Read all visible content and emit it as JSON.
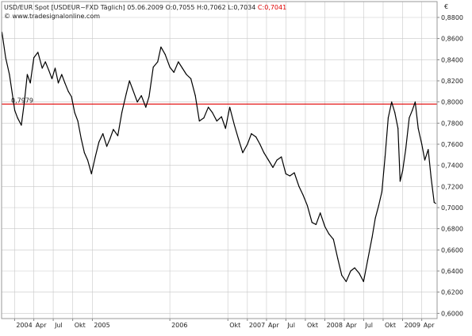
{
  "header": {
    "title": "USD/EUR Spot [USDEUR~FXD Täglich]",
    "date": "05.06.2009",
    "ohl": "O:0,7055 H:0,7062 L:0,7034",
    "close": "C:0,7041",
    "source": "© www.tradesignalonline.com",
    "currency": "€"
  },
  "colors": {
    "series": "#000000",
    "refline": "#e00000",
    "close": "#e00000",
    "grid": "#c8c8c8",
    "frame": "#9a9a9a"
  },
  "chart_data": {
    "type": "line",
    "title": "USD/EUR Spot [USDEUR~FXD Täglich]",
    "xlabel": "",
    "ylabel": "€",
    "ylim": [
      0.595,
      0.895
    ],
    "xlim": [
      "2003-11-01",
      "2009-06-12"
    ],
    "y_ticks": [
      "0,6000",
      "0,6200",
      "0,6400",
      "0,6600",
      "0,6800",
      "0,7000",
      "0,7200",
      "0,7400",
      "0,7600",
      "0,7800",
      "0,8000",
      "0,8200",
      "0,8400",
      "0,8600",
      "0,8800"
    ],
    "x_ticks": [
      {
        "date": "2004-01-01",
        "label": "2004"
      },
      {
        "date": "2004-04-01",
        "label": "Apr"
      },
      {
        "date": "2004-07-01",
        "label": "Jul"
      },
      {
        "date": "2004-10-01",
        "label": "Okt"
      },
      {
        "date": "2005-01-01",
        "label": "2005"
      },
      {
        "date": "2006-01-01",
        "label": "2006"
      },
      {
        "date": "2006-10-01",
        "label": "Okt"
      },
      {
        "date": "2007-01-01",
        "label": "2007"
      },
      {
        "date": "2007-04-01",
        "label": "Apr"
      },
      {
        "date": "2007-07-01",
        "label": "Jul"
      },
      {
        "date": "2007-10-01",
        "label": "Okt"
      },
      {
        "date": "2008-01-01",
        "label": "2008"
      },
      {
        "date": "2008-04-01",
        "label": "Apr"
      },
      {
        "date": "2008-07-01",
        "label": "Jul"
      },
      {
        "date": "2008-10-01",
        "label": "Okt"
      },
      {
        "date": "2009-01-01",
        "label": "2009"
      },
      {
        "date": "2009-04-01",
        "label": "Apr"
      }
    ],
    "grid": true,
    "reference_line": {
      "value": 0.798,
      "label": "0,7979"
    },
    "series": [
      {
        "x": [
          "2003-11-03",
          "2003-11-20",
          "2003-12-08",
          "2004-01-02",
          "2004-01-15",
          "2004-02-02",
          "2004-02-16",
          "2004-03-01",
          "2004-03-15",
          "2004-04-01",
          "2004-04-20",
          "2004-05-10",
          "2004-05-25",
          "2004-06-10",
          "2004-06-25",
          "2004-07-10",
          "2004-07-25",
          "2004-08-10",
          "2004-08-25",
          "2004-09-10",
          "2004-09-25",
          "2004-10-10",
          "2004-10-25",
          "2004-11-10",
          "2004-11-25",
          "2004-12-10",
          "2004-12-28",
          "2005-01-15",
          "2005-02-01",
          "2005-02-20",
          "2005-03-10",
          "2005-03-25",
          "2005-04-10",
          "2005-05-01",
          "2005-05-20",
          "2005-06-10",
          "2005-06-25",
          "2005-07-10",
          "2005-08-01",
          "2005-08-20",
          "2005-09-10",
          "2005-09-25",
          "2005-10-15",
          "2005-11-05",
          "2005-11-20",
          "2005-12-10",
          "2006-01-01",
          "2006-01-20",
          "2006-02-10",
          "2006-03-01",
          "2006-03-20",
          "2006-04-10",
          "2006-05-01",
          "2006-05-20",
          "2006-06-10",
          "2006-07-01",
          "2006-07-20",
          "2006-08-10",
          "2006-09-01",
          "2006-09-20",
          "2006-10-10",
          "2006-11-01",
          "2006-11-20",
          "2006-12-10",
          "2007-01-01",
          "2007-01-20",
          "2007-02-10",
          "2007-03-01",
          "2007-03-20",
          "2007-04-10",
          "2007-05-01",
          "2007-05-20",
          "2007-06-10",
          "2007-07-01",
          "2007-07-20",
          "2007-08-10",
          "2007-09-01",
          "2007-09-20",
          "2007-10-10",
          "2007-11-01",
          "2007-11-20",
          "2007-12-10",
          "2008-01-01",
          "2008-01-20",
          "2008-02-10",
          "2008-03-01",
          "2008-03-20",
          "2008-04-10",
          "2008-05-01",
          "2008-05-20",
          "2008-06-10",
          "2008-07-01",
          "2008-07-20",
          "2008-08-10",
          "2008-08-25",
          "2008-09-10",
          "2008-09-25",
          "2008-10-10",
          "2008-10-25",
          "2008-11-10",
          "2008-11-25",
          "2008-12-10",
          "2008-12-20",
          "2009-01-01",
          "2009-01-15",
          "2009-02-01",
          "2009-02-15",
          "2009-03-01",
          "2009-03-15",
          "2009-04-01",
          "2009-04-15",
          "2009-05-01",
          "2009-05-15",
          "2009-05-29",
          "2009-06-05"
        ],
        "y": [
          0.866,
          0.842,
          0.826,
          0.792,
          0.785,
          0.778,
          0.8,
          0.826,
          0.818,
          0.842,
          0.847,
          0.832,
          0.838,
          0.83,
          0.822,
          0.832,
          0.818,
          0.826,
          0.818,
          0.81,
          0.805,
          0.79,
          0.782,
          0.765,
          0.752,
          0.745,
          0.732,
          0.748,
          0.762,
          0.77,
          0.758,
          0.765,
          0.774,
          0.768,
          0.79,
          0.808,
          0.82,
          0.812,
          0.8,
          0.806,
          0.795,
          0.805,
          0.833,
          0.838,
          0.852,
          0.845,
          0.833,
          0.828,
          0.838,
          0.832,
          0.826,
          0.822,
          0.806,
          0.782,
          0.785,
          0.795,
          0.79,
          0.782,
          0.786,
          0.775,
          0.795,
          0.778,
          0.765,
          0.752,
          0.76,
          0.77,
          0.767,
          0.76,
          0.752,
          0.745,
          0.738,
          0.745,
          0.748,
          0.732,
          0.73,
          0.733,
          0.72,
          0.712,
          0.702,
          0.686,
          0.684,
          0.695,
          0.682,
          0.675,
          0.67,
          0.652,
          0.636,
          0.63,
          0.64,
          0.643,
          0.638,
          0.63,
          0.65,
          0.672,
          0.69,
          0.702,
          0.715,
          0.748,
          0.785,
          0.8,
          0.79,
          0.775,
          0.725,
          0.735,
          0.755,
          0.785,
          0.792,
          0.8,
          0.775,
          0.76,
          0.745,
          0.755,
          0.728,
          0.705,
          0.704
        ]
      }
    ]
  }
}
